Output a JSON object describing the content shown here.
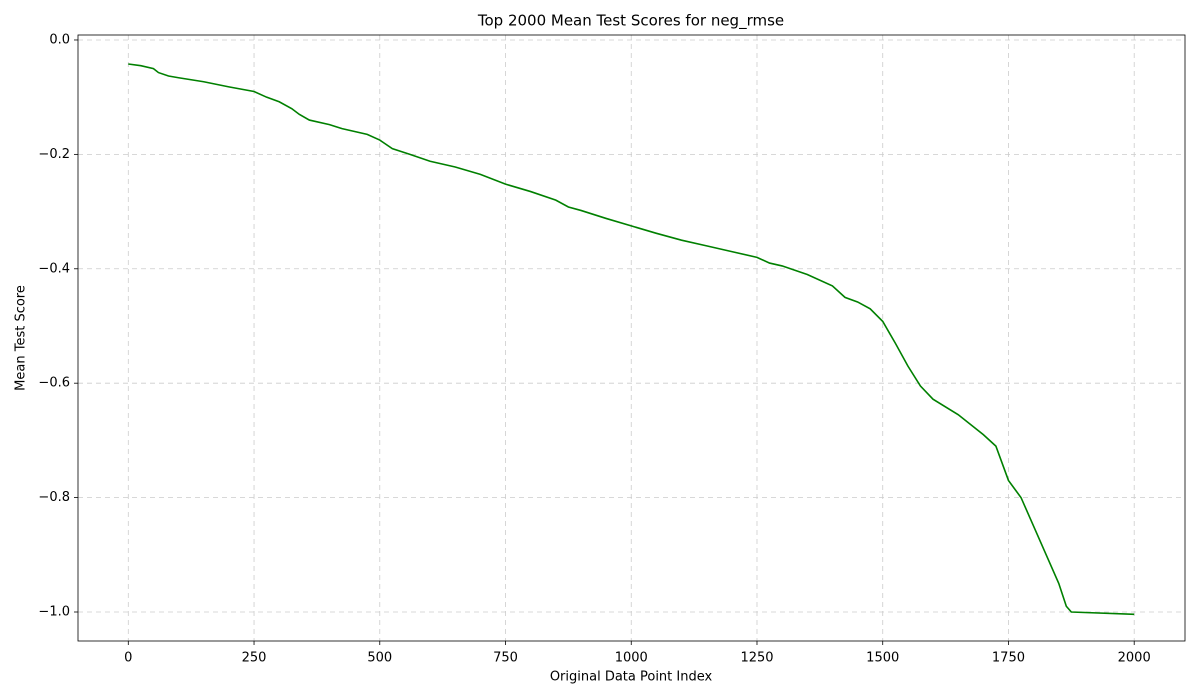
{
  "chart_data": {
    "type": "line",
    "title": "Top 2000 Mean Test Scores for neg_rmse",
    "xlabel": "Original Data Point Index",
    "ylabel": "Mean Test Score",
    "x": [
      0,
      25,
      50,
      60,
      80,
      100,
      150,
      200,
      250,
      275,
      300,
      325,
      340,
      360,
      400,
      425,
      475,
      500,
      525,
      560,
      600,
      650,
      700,
      750,
      800,
      850,
      875,
      900,
      950,
      1000,
      1050,
      1100,
      1150,
      1200,
      1250,
      1275,
      1300,
      1350,
      1400,
      1425,
      1450,
      1475,
      1500,
      1525,
      1550,
      1575,
      1600,
      1650,
      1700,
      1725,
      1750,
      1775,
      1800,
      1825,
      1850,
      1865,
      1875,
      2000
    ],
    "series": [
      {
        "color": "#008000",
        "values": [
          -0.042,
          -0.045,
          -0.05,
          -0.057,
          -0.063,
          -0.066,
          -0.073,
          -0.082,
          -0.09,
          -0.1,
          -0.108,
          -0.12,
          -0.13,
          -0.14,
          -0.148,
          -0.155,
          -0.165,
          -0.175,
          -0.19,
          -0.2,
          -0.212,
          -0.222,
          -0.235,
          -0.252,
          -0.265,
          -0.28,
          -0.292,
          -0.298,
          -0.312,
          -0.325,
          -0.338,
          -0.35,
          -0.36,
          -0.37,
          -0.38,
          -0.39,
          -0.395,
          -0.41,
          -0.43,
          -0.45,
          -0.458,
          -0.47,
          -0.492,
          -0.53,
          -0.57,
          -0.605,
          -0.628,
          -0.655,
          -0.69,
          -0.71,
          -0.77,
          -0.8,
          -0.85,
          -0.9,
          -0.95,
          -0.99,
          -1.0,
          -1.004
        ]
      }
    ],
    "xlim": [
      -100,
      2101
    ],
    "ylim": [
      -1.0507,
      0.0087
    ],
    "xticks": [
      0,
      250,
      500,
      750,
      1000,
      1250,
      1500,
      1750,
      2000
    ],
    "yticks": [
      {
        "value": 0,
        "label": "0.0"
      },
      {
        "value": -0.2,
        "label": "−0.2"
      },
      {
        "value": -0.4,
        "label": "−0.4"
      },
      {
        "value": -0.6,
        "label": "−0.6"
      },
      {
        "value": -0.8,
        "label": "−0.8"
      },
      {
        "value": -1.0,
        "label": "−1.0"
      }
    ],
    "grid": true
  }
}
